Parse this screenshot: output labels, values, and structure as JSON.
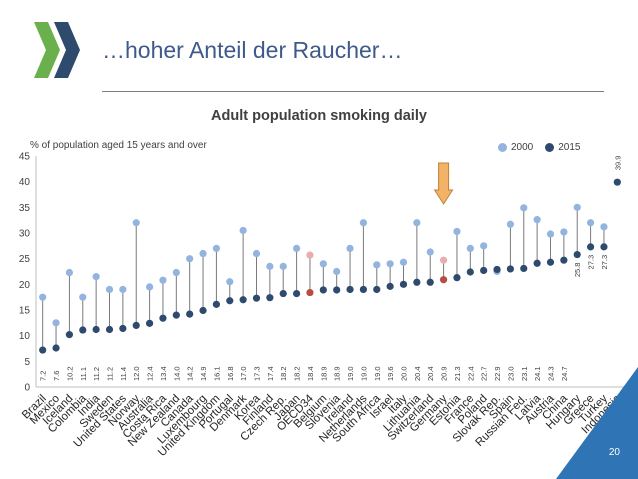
{
  "slide": {
    "title": "…hoher Anteil der Raucher…",
    "page_number": "20"
  },
  "colors": {
    "series_2000": "#93b4de",
    "series_2015": "#2e4a6d",
    "highlight_2000": "#e8aeae",
    "highlight_2015": "#b84c42",
    "stem": "#7a7a7a",
    "arrow_fill": "#f2b366",
    "arrow_stroke": "#c1803a",
    "accent": "#2f75b5"
  },
  "chart_data": {
    "type": "dumbbell",
    "title": "Adult population smoking daily",
    "ylabel": "% of population aged 15 years and over",
    "ylim": [
      0,
      45
    ],
    "yticks": [
      0,
      5,
      10,
      15,
      20,
      25,
      30,
      35,
      40,
      45
    ],
    "legend_position": "top-right",
    "highlight_categories": [
      "OECD34",
      "Germany"
    ],
    "annotation": "arrow-pointing-at-Germany",
    "categories": [
      "Brazil",
      "Mexico",
      "Iceland",
      "Colombia",
      "India",
      "Sweden",
      "United States",
      "Norway",
      "Australia",
      "Costa Rica",
      "New Zealand",
      "Canada",
      "Luxembourg",
      "United Kingdom",
      "Portugal",
      "Denmark",
      "Korea",
      "Finland",
      "Czech Rep.",
      "Japan",
      "OECD34",
      "Belgium",
      "Slovenia",
      "Ireland",
      "Netherlands",
      "South Africa",
      "Israel",
      "Italy",
      "Lithuania",
      "Switzerland",
      "Germany",
      "Estonia",
      "France",
      "Poland",
      "Slovak Rep.",
      "Spain",
      "Russian Fed.",
      "Latvia",
      "Austria",
      "China",
      "Hungary",
      "Greece",
      "Turkey",
      "Indonesia"
    ],
    "series": [
      {
        "name": "2000",
        "values": [
          17.5,
          12.5,
          22.3,
          17.5,
          21.5,
          19.0,
          19.0,
          32.0,
          19.5,
          20.8,
          22.3,
          25.0,
          26.0,
          27.0,
          20.5,
          30.5,
          26.0,
          23.5,
          23.5,
          27.0,
          25.7,
          24.0,
          22.5,
          27.0,
          32.0,
          23.8,
          24.0,
          24.3,
          32.0,
          26.3,
          24.7,
          30.3,
          27.0,
          27.5,
          22.5,
          31.7,
          34.9,
          32.6,
          29.8,
          30.2,
          35.0,
          32.0,
          31.2,
          null
        ]
      },
      {
        "name": "2015",
        "values": [
          7.2,
          7.6,
          10.2,
          11.1,
          11.2,
          11.2,
          11.4,
          12.0,
          12.4,
          13.4,
          14.0,
          14.2,
          14.9,
          16.1,
          16.8,
          17.0,
          17.3,
          17.4,
          18.2,
          18.2,
          18.4,
          18.9,
          18.9,
          19.0,
          19.0,
          19.0,
          19.6,
          20.0,
          20.4,
          20.4,
          20.9,
          21.3,
          22.4,
          22.7,
          22.9,
          23.0,
          23.1,
          24.1,
          24.3,
          24.7,
          25.8,
          27.3,
          27.3,
          39.9
        ]
      }
    ],
    "value_labels": [
      "7.2",
      "7.6",
      "10.2",
      "11.1",
      "11.2",
      "11.2",
      "11.4",
      "12.0",
      "12.4",
      "13.4",
      "14.0",
      "14.2",
      "14.9",
      "16.1",
      "16.8",
      "17.0",
      "17.3",
      "17.4",
      "18.2",
      "18.2",
      "18.4",
      "18.9",
      "18.9",
      "19.0",
      "19.0",
      "19.0",
      "19.6",
      "20.0",
      "20.4",
      "20.4",
      "20.9",
      "21.3",
      "22.4",
      "22.7",
      "22.9",
      "23.0",
      "23.1",
      "24.1",
      "24.3",
      "24.7",
      "25.8",
      "27.3",
      "27.3",
      "39.9"
    ]
  }
}
